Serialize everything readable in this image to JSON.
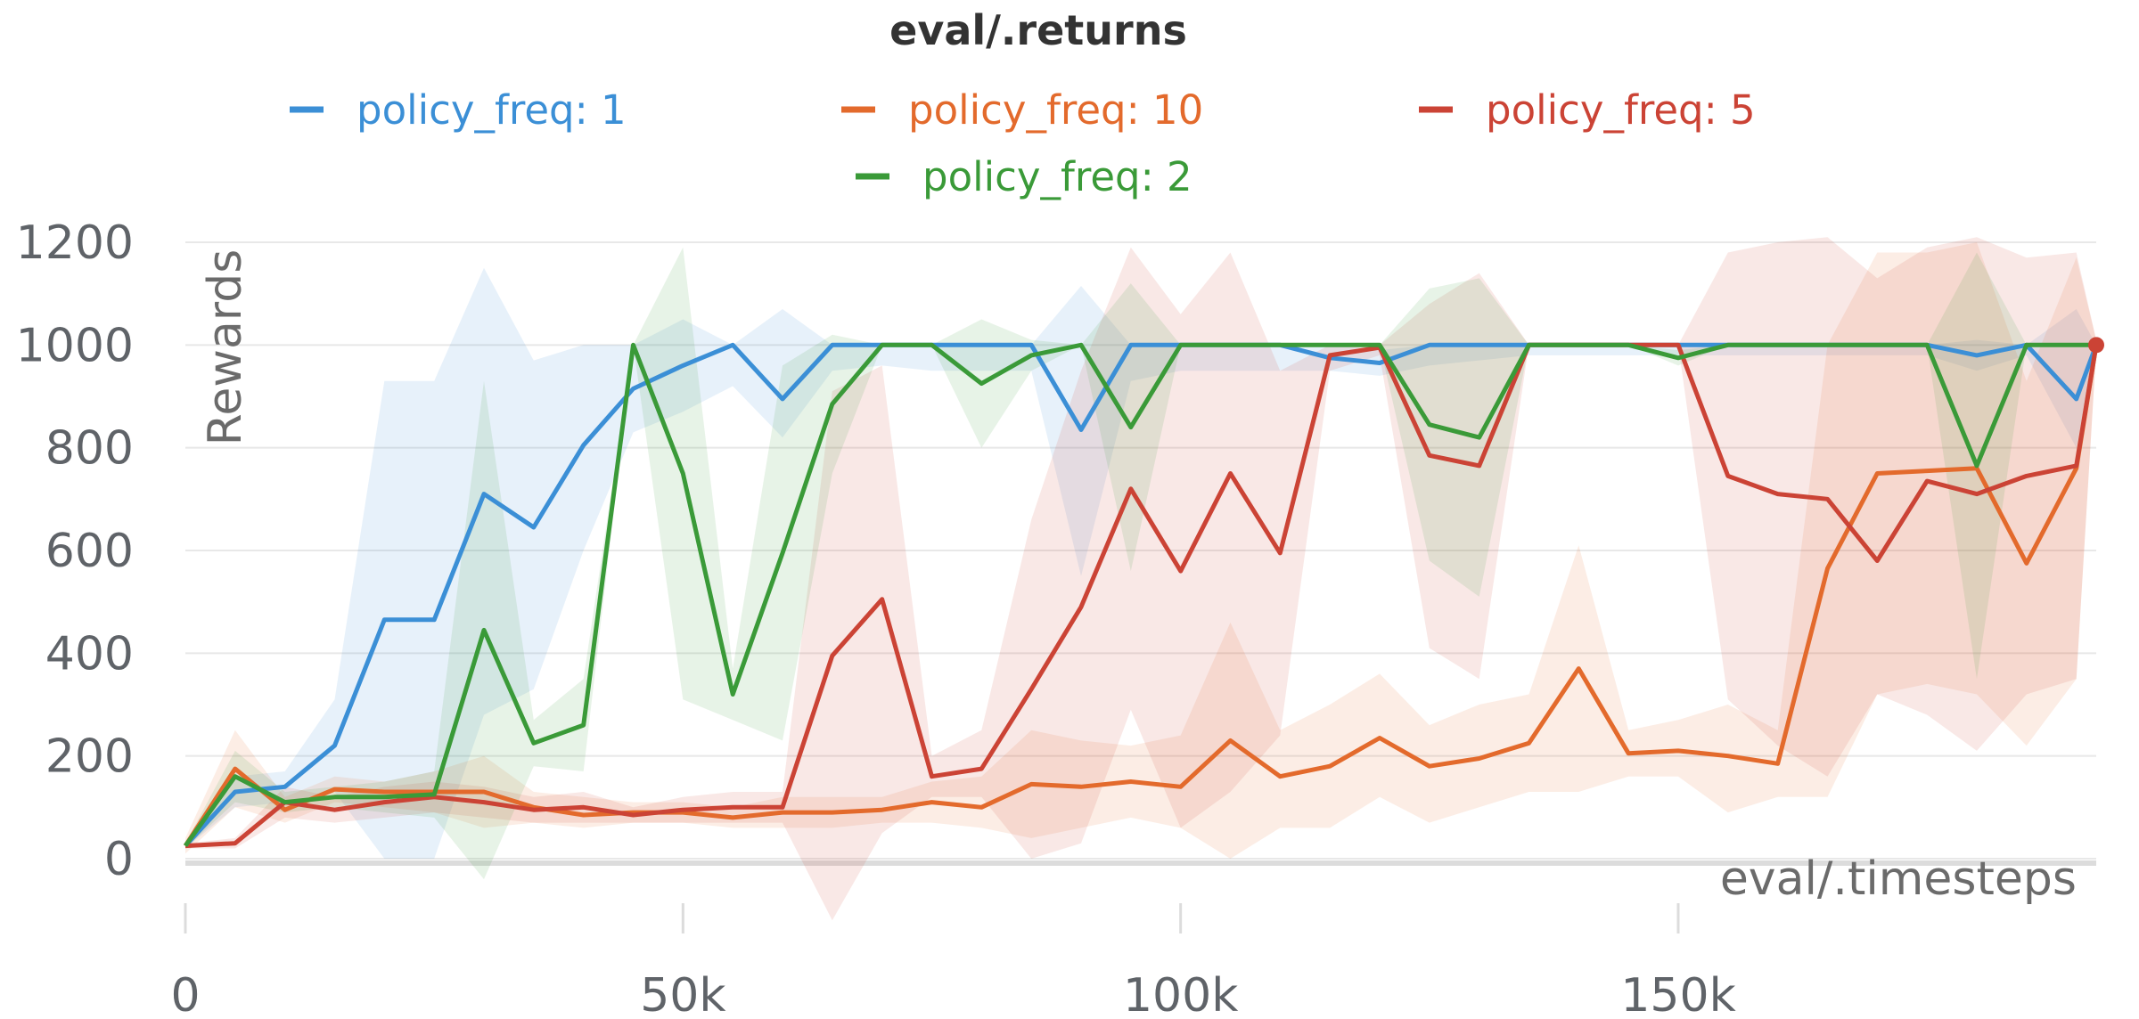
{
  "chart_data": {
    "type": "line",
    "title": "eval/.returns",
    "xlabel": "eval/.timesteps",
    "ylabel": "Rewards",
    "xlim": [
      0,
      192000
    ],
    "ylim": [
      0,
      1200
    ],
    "xticks": [
      0,
      50000,
      100000,
      150000
    ],
    "xtick_labels": [
      "0",
      "50k",
      "100k",
      "150k"
    ],
    "yticks": [
      0,
      200,
      400,
      600,
      800,
      1000,
      1200
    ],
    "ytick_labels": [
      "0",
      "200",
      "400",
      "600",
      "800",
      "1000",
      "1200"
    ],
    "grid": true,
    "legend_position": "top",
    "x": [
      0,
      5000,
      10000,
      15000,
      20000,
      25000,
      30000,
      35000,
      40000,
      45000,
      50000,
      55000,
      60000,
      65000,
      70000,
      75000,
      80000,
      85000,
      90000,
      95000,
      100000,
      105000,
      110000,
      115000,
      120000,
      125000,
      130000,
      135000,
      140000,
      145000,
      150000,
      155000,
      160000,
      165000,
      170000,
      175000,
      180000,
      185000,
      190000,
      195000
    ],
    "series": [
      {
        "name": "policy_freq: 1",
        "color": "#3b8fd6",
        "values": [
          25,
          130,
          140,
          220,
          465,
          465,
          710,
          645,
          805,
          915,
          960,
          1000,
          895,
          1000,
          1000,
          1000,
          1000,
          1000,
          835,
          1000,
          1000,
          1000,
          1000,
          975,
          965,
          1000,
          1000,
          1000,
          1000,
          1000,
          1000,
          1000,
          1000,
          1000,
          1000,
          1000,
          980,
          1000,
          895,
          1000
        ],
        "lower": [
          20,
          100,
          110,
          130,
          0,
          0,
          280,
          330,
          600,
          830,
          870,
          920,
          820,
          950,
          960,
          950,
          950,
          950,
          550,
          930,
          950,
          950,
          950,
          950,
          940,
          960,
          970,
          980,
          980,
          980,
          980,
          980,
          980,
          980,
          980,
          980,
          950,
          980,
          800,
          1000
        ],
        "upper": [
          30,
          160,
          170,
          310,
          930,
          930,
          1150,
          970,
          1000,
          1000,
          1050,
          1000,
          1070,
          1000,
          1000,
          1000,
          1000,
          1000,
          1115,
          1000,
          1000,
          1000,
          1000,
          1000,
          990,
          1000,
          1000,
          1000,
          1000,
          1000,
          1000,
          1000,
          1000,
          1000,
          1000,
          1000,
          1010,
          1000,
          1070,
          1000
        ]
      },
      {
        "name": "policy_freq: 10",
        "color": "#e36a2c",
        "values": [
          25,
          175,
          95,
          135,
          130,
          130,
          130,
          100,
          85,
          90,
          90,
          80,
          90,
          90,
          95,
          110,
          100,
          145,
          140,
          150,
          140,
          230,
          160,
          180,
          235,
          180,
          195,
          225,
          370,
          205,
          210,
          200,
          185,
          565,
          750,
          755,
          760,
          575,
          760,
          1000
        ],
        "lower": [
          10,
          100,
          70,
          110,
          100,
          90,
          60,
          70,
          60,
          70,
          70,
          60,
          60,
          60,
          70,
          70,
          60,
          40,
          60,
          80,
          60,
          0,
          60,
          60,
          120,
          70,
          100,
          130,
          130,
          160,
          160,
          90,
          120,
          120,
          320,
          340,
          320,
          220,
          350,
          990
        ],
        "upper": [
          40,
          250,
          120,
          160,
          150,
          170,
          200,
          130,
          120,
          110,
          110,
          100,
          120,
          120,
          120,
          150,
          160,
          250,
          230,
          220,
          240,
          460,
          250,
          300,
          360,
          260,
          300,
          320,
          610,
          250,
          270,
          300,
          250,
          1000,
          1180,
          1180,
          1200,
          930,
          1170,
          1010
        ]
      },
      {
        "name": "policy_freq: 5",
        "color": "#cb4335",
        "values": [
          25,
          30,
          110,
          95,
          110,
          120,
          110,
          95,
          100,
          85,
          95,
          100,
          100,
          395,
          505,
          160,
          175,
          330,
          490,
          720,
          560,
          750,
          595,
          980,
          995,
          785,
          765,
          1000,
          1000,
          1000,
          1000,
          745,
          710,
          700,
          580,
          735,
          710,
          745,
          765,
          1000
        ],
        "lower": [
          20,
          20,
          80,
          70,
          80,
          90,
          80,
          70,
          70,
          70,
          70,
          70,
          70,
          -120,
          50,
          120,
          120,
          0,
          30,
          290,
          60,
          130,
          240,
          950,
          980,
          410,
          350,
          1000,
          1000,
          1000,
          1000,
          310,
          220,
          160,
          320,
          280,
          210,
          320,
          350,
          990
        ],
        "upper": [
          30,
          40,
          140,
          120,
          140,
          150,
          140,
          120,
          130,
          100,
          120,
          130,
          130,
          910,
          960,
          200,
          250,
          660,
          950,
          1190,
          1060,
          1180,
          950,
          1000,
          1000,
          1080,
          1140,
          1000,
          1000,
          1000,
          1000,
          1180,
          1200,
          1210,
          1130,
          1190,
          1210,
          1170,
          1180,
          1010
        ]
      },
      {
        "name": "policy_freq: 2",
        "color": "#3a9a38",
        "values": [
          25,
          160,
          110,
          120,
          120,
          125,
          445,
          225,
          260,
          1000,
          750,
          320,
          595,
          885,
          1000,
          1000,
          925,
          980,
          1000,
          840,
          1000,
          1000,
          1000,
          1000,
          1000,
          845,
          820,
          1000,
          1000,
          1000,
          975,
          1000,
          1000,
          1000,
          1000,
          1000,
          765,
          1000,
          1000,
          1000
        ],
        "lower": [
          20,
          110,
          90,
          100,
          90,
          80,
          -40,
          180,
          170,
          1000,
          310,
          270,
          230,
          750,
          1000,
          1000,
          800,
          950,
          1000,
          560,
          1000,
          1000,
          1000,
          1000,
          1000,
          580,
          510,
          1000,
          1000,
          1000,
          960,
          1000,
          1000,
          1000,
          1000,
          1000,
          350,
          1000,
          1000,
          1000
        ],
        "upper": [
          30,
          210,
          130,
          140,
          150,
          170,
          930,
          270,
          350,
          1000,
          1190,
          370,
          960,
          1020,
          1000,
          1000,
          1050,
          1010,
          1000,
          1120,
          1000,
          1000,
          1000,
          1000,
          1000,
          1110,
          1130,
          1000,
          1000,
          1000,
          990,
          1000,
          1000,
          1000,
          1000,
          1000,
          1180,
          1000,
          1000,
          1000
        ]
      }
    ]
  }
}
